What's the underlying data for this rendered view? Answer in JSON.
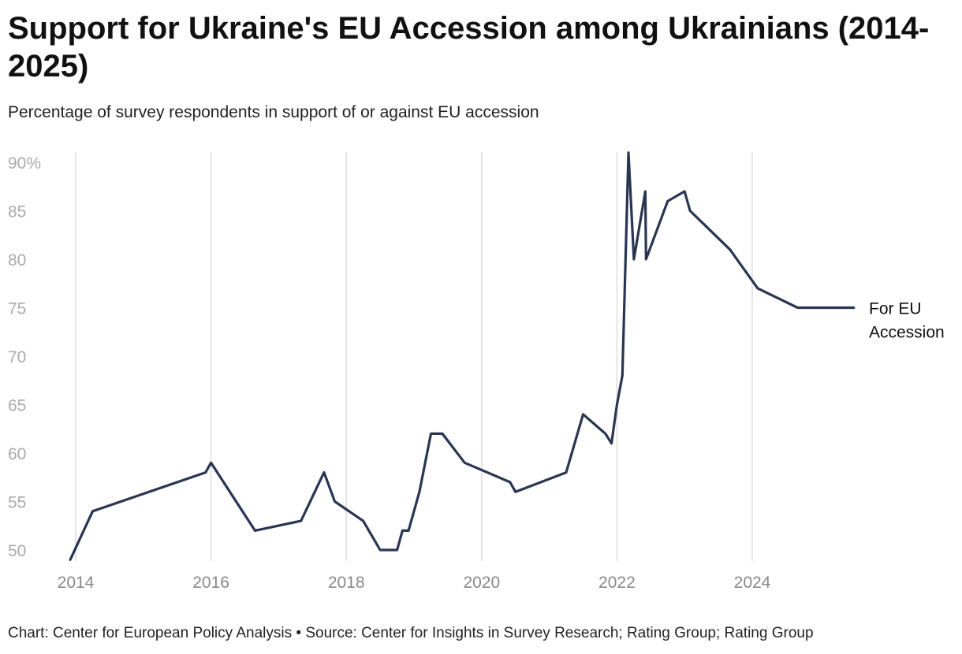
{
  "chart_data": {
    "type": "line",
    "title": "Support for Ukraine's EU Accession among Ukrainians (2014-2025)",
    "subtitle": "Percentage of survey respondents in support of or against EU accession",
    "source": "Chart: Center for European Policy Analysis • Source: Center for Insights in Survey Research; Rating Group; Rating Group",
    "xlabel": "",
    "ylabel": "",
    "xlim": [
      2013.95,
      2025.9
    ],
    "ylim": [
      49,
      91
    ],
    "x_ticks": [
      2014,
      2016,
      2018,
      2020,
      2022,
      2024
    ],
    "y_ticks": [
      {
        "value": 90,
        "label": "90%"
      },
      {
        "value": 85,
        "label": "85"
      },
      {
        "value": 80,
        "label": "80"
      },
      {
        "value": 75,
        "label": "75"
      },
      {
        "value": 70,
        "label": "70"
      },
      {
        "value": 65,
        "label": "65"
      },
      {
        "value": 60,
        "label": "60"
      },
      {
        "value": 55,
        "label": "55"
      },
      {
        "value": 50,
        "label": "50"
      }
    ],
    "grid": "vertical",
    "series": [
      {
        "name": "For EU Accession",
        "label_lines": [
          "For EU",
          "Accession"
        ],
        "color": "#2a3553",
        "x": [
          2013.92,
          2014.25,
          2015.92,
          2016.0,
          2016.65,
          2017.33,
          2017.67,
          2017.83,
          2018.25,
          2018.5,
          2018.75,
          2018.83,
          2018.92,
          2019.08,
          2019.25,
          2019.42,
          2019.75,
          2020.42,
          2020.5,
          2021.25,
          2021.5,
          2021.83,
          2021.92,
          2022.0,
          2022.08,
          2022.17,
          2022.25,
          2022.42,
          2022.43,
          2022.75,
          2023.0,
          2023.08,
          2023.67,
          2024.08,
          2024.67,
          2025.5
        ],
        "y": [
          49,
          54,
          58,
          59,
          52,
          53,
          58,
          55,
          53,
          50,
          50,
          52,
          52,
          56,
          62,
          62,
          59,
          57,
          56,
          58,
          64,
          62,
          61,
          65,
          68,
          91,
          80,
          87,
          80,
          86,
          87,
          85,
          81,
          77,
          75,
          75
        ]
      }
    ]
  }
}
